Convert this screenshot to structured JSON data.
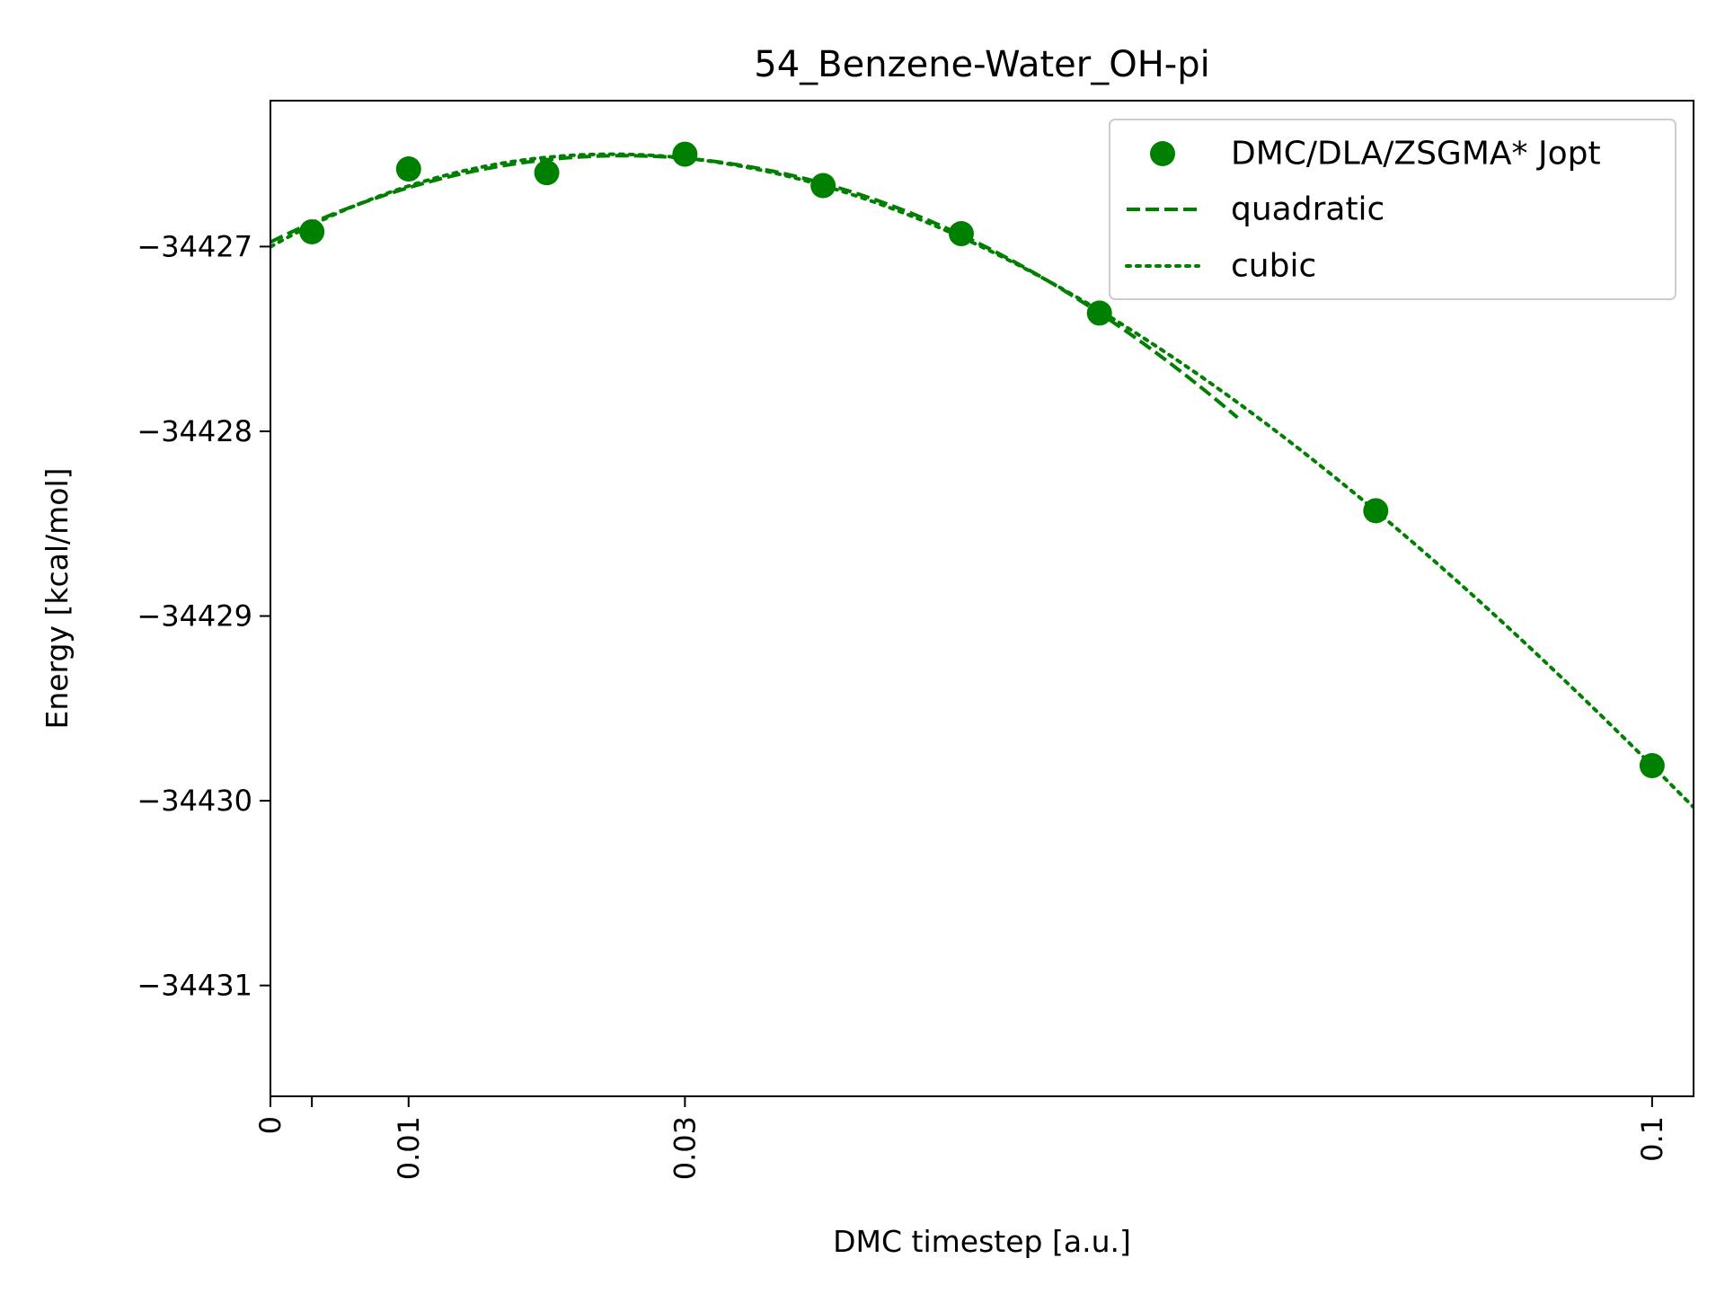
{
  "chart_data": {
    "type": "scatter",
    "title": "54_Benzene-Water_OH-pi",
    "xlabel": "DMC timestep [a.u.]",
    "ylabel": "Energy [kcal/mol]",
    "xlim": [
      0,
      0.103
    ],
    "ylim": [
      -34431.6,
      -34426.21
    ],
    "xticks": [
      0,
      0.003,
      0.01,
      0.03,
      0.1
    ],
    "xtick_labels": [
      "0",
      "",
      "0.01",
      "0.03",
      "0.1"
    ],
    "yticks": [
      -34427,
      -34428,
      -34429,
      -34430,
      -34431
    ],
    "ytick_labels": [
      "−34427",
      "−34428",
      "−34429",
      "−34430",
      "−34431"
    ],
    "grid": false,
    "legend_position": "upper-right",
    "color": "#008000",
    "series": [
      {
        "name": "DMC/DLA/ZSGMA* Jopt",
        "style": "markers",
        "x": [
          0.003,
          0.01,
          0.02,
          0.03,
          0.04,
          0.05,
          0.06,
          0.08,
          0.1
        ],
        "y": [
          -34426.92,
          -34426.58,
          -34426.6,
          -34426.5,
          -34426.67,
          -34426.93,
          -34427.36,
          -34428.43,
          -34429.81
        ]
      },
      {
        "name": "quadratic",
        "style": "dashed",
        "fit": "quadratic",
        "x_range": [
          0,
          0.07
        ]
      },
      {
        "name": "cubic",
        "style": "dotted",
        "fit": "cubic",
        "x_range": [
          0,
          0.103
        ]
      }
    ]
  }
}
